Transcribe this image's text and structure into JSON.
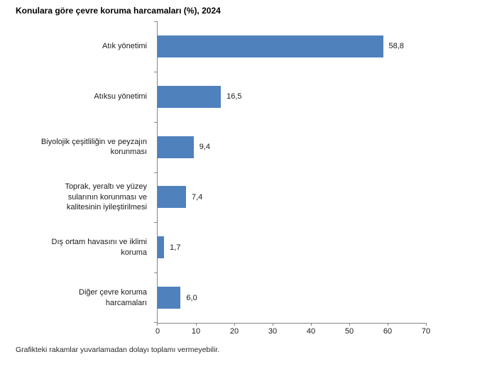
{
  "title": "Konulara göre çevre koruma harcamaları (%), 2024",
  "footnote": "Grafikteki rakamlar yuvarlamadan dolayı toplamı vermeyebilir.",
  "colors": {
    "bar": "#4F81BD",
    "axis": "#858585",
    "text": "#1a1a1a",
    "title": "#000000"
  },
  "chart_data": {
    "type": "bar",
    "orientation": "horizontal",
    "title": "Konulara göre çevre koruma harcamaları (%), 2024",
    "categories": [
      "Atık yönetimi",
      "Atıksu yönetimi",
      "Biyolojik çeşitliliğin ve peyzajın korunması",
      "Toprak, yeraltı ve yüzey sularının korunması ve kalitesinin iyileştirilmesi",
      "Dış ortam havasını ve iklimi koruma",
      "Diğer çevre koruma harcamaları"
    ],
    "category_label_lines": [
      [
        "Atık yönetimi"
      ],
      [
        "Atıksu yönetimi"
      ],
      [
        "Biyolojik çeşitliliğin ve peyzajın",
        "korunması"
      ],
      [
        "Toprak, yeraltı ve yüzey",
        "sularının korunması ve",
        "kalitesinin iyileştirilmesi"
      ],
      [
        "Dış ortam havasını ve iklimi",
        "koruma"
      ],
      [
        "Diğer çevre koruma",
        "harcamaları"
      ]
    ],
    "values": [
      58.8,
      16.5,
      9.4,
      7.4,
      1.7,
      6.0
    ],
    "value_labels": [
      "58,8",
      "16,5",
      "9,4",
      "7,4",
      "1,7",
      "6,0"
    ],
    "xlabel": "",
    "ylabel": "",
    "xlim": [
      0,
      70
    ],
    "x_ticks": [
      0,
      10,
      20,
      30,
      40,
      50,
      60,
      70
    ],
    "x_tick_labels": [
      "0",
      "10",
      "20",
      "30",
      "40",
      "50",
      "60",
      "70"
    ],
    "grid": false,
    "legend": false,
    "data_labels": true
  }
}
